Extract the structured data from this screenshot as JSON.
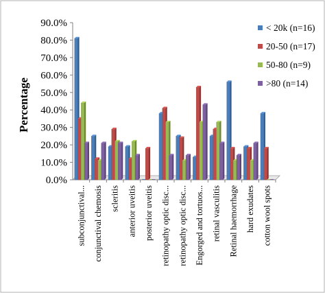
{
  "chart_data": {
    "type": "bar",
    "title": "",
    "xlabel": "",
    "ylabel": "Percentage",
    "ylim": [
      0,
      0.9
    ],
    "y_ticks": [
      "0.0%",
      "10.0%",
      "20.0%",
      "30.0%",
      "40.0%",
      "50.0%",
      "60.0%",
      "70.0%",
      "80.0%",
      "90.0%"
    ],
    "y_tick_values": [
      0,
      0.1,
      0.2,
      0.3,
      0.4,
      0.5,
      0.6,
      0.7,
      0.8,
      0.9
    ],
    "grid": false,
    "legend_position": "right",
    "categories": [
      "subconjunctival...",
      "conjunctival chemosis",
      "scleritis",
      "anterior uveitis",
      "posterior uveitis",
      "retinopathy optic disc...",
      "retinopathy optic disc...",
      "Engorged and tortuos...",
      "retinal vasculitis",
      "Retinal haemorrhage",
      "hard exudates",
      "cotton wool spots"
    ],
    "series": [
      {
        "name": "< 20k (n=16)",
        "color": "#4a7ebb",
        "values": [
          0.81,
          0.25,
          0.19,
          0.19,
          0.0,
          0.38,
          0.25,
          0.13,
          0.25,
          0.56,
          0.19,
          0.38
        ]
      },
      {
        "name": "20-50 (n=17)",
        "color": "#be4b48",
        "values": [
          0.35,
          0.12,
          0.29,
          0.12,
          0.18,
          0.41,
          0.24,
          0.53,
          0.29,
          0.18,
          0.18,
          0.18
        ]
      },
      {
        "name": "50-80 (n=9)",
        "color": "#98b954",
        "values": [
          0.44,
          0.11,
          0.22,
          0.22,
          0.0,
          0.33,
          0.11,
          0.33,
          0.33,
          0.11,
          0.11,
          0.0
        ]
      },
      {
        "name": ">80 (n=14)",
        "color": "#7d60a0",
        "values": [
          0.21,
          0.21,
          0.21,
          0.14,
          0.0,
          0.14,
          0.14,
          0.43,
          0.21,
          0.14,
          0.21,
          0.0
        ]
      }
    ]
  }
}
